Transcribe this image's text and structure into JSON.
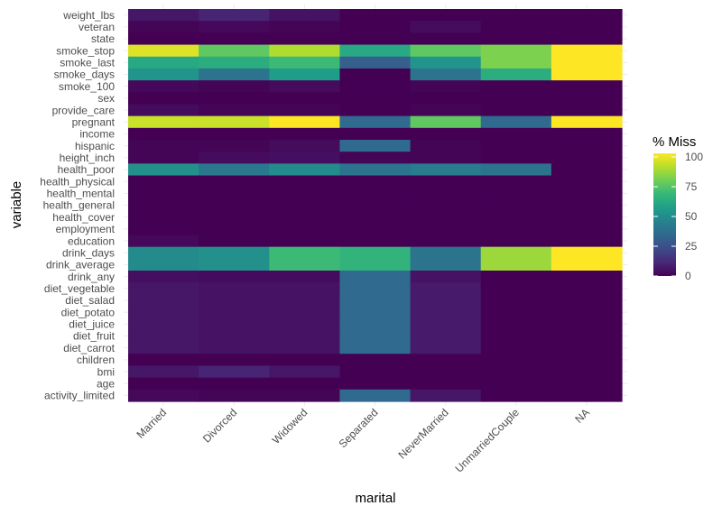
{
  "chart_data": {
    "type": "heatmap",
    "xlabel": "marital",
    "ylabel": "variable",
    "categories": [
      "Married",
      "Divorced",
      "Widowed",
      "Separated",
      "NeverMarried",
      "UnmarriedCouple",
      "NA"
    ],
    "variables": [
      "weight_lbs",
      "veteran",
      "state",
      "smoke_stop",
      "smoke_last",
      "smoke_days",
      "smoke_100",
      "sex",
      "provide_care",
      "pregnant",
      "income",
      "hispanic",
      "height_inch",
      "health_poor",
      "health_physical",
      "health_mental",
      "health_general",
      "health_cover",
      "employment",
      "education",
      "drink_days",
      "drink_average",
      "drink_any",
      "diet_vegetable",
      "diet_salad",
      "diet_potato",
      "diet_juice",
      "diet_fruit",
      "diet_carrot",
      "children",
      "bmi",
      "age",
      "activity_limited"
    ],
    "values": [
      [
        6,
        10,
        5,
        0,
        0,
        0,
        0
      ],
      [
        1,
        2,
        1,
        0,
        3,
        0,
        0
      ],
      [
        0,
        0,
        0,
        0,
        0,
        0,
        0
      ],
      [
        95,
        75,
        88,
        60,
        75,
        80,
        100
      ],
      [
        60,
        62,
        68,
        30,
        52,
        80,
        100
      ],
      [
        52,
        38,
        55,
        0,
        38,
        62,
        100
      ],
      [
        2,
        1,
        3,
        0,
        1,
        0,
        0
      ],
      [
        0,
        0,
        0,
        0,
        0,
        0,
        0
      ],
      [
        3,
        1,
        1,
        0,
        1,
        0,
        0
      ],
      [
        92,
        92,
        100,
        34,
        75,
        34,
        100
      ],
      [
        0,
        0,
        0,
        0,
        0,
        0,
        0
      ],
      [
        1,
        1,
        3,
        34,
        1,
        0,
        0
      ],
      [
        1,
        3,
        4,
        1,
        1,
        0,
        0
      ],
      [
        50,
        40,
        48,
        38,
        42,
        38,
        0
      ],
      [
        0,
        0,
        0,
        0,
        0,
        0,
        0
      ],
      [
        0,
        0,
        0,
        0,
        0,
        0,
        0
      ],
      [
        0,
        0,
        0,
        0,
        0,
        0,
        0
      ],
      [
        0,
        0,
        0,
        0,
        0,
        0,
        0
      ],
      [
        0,
        0,
        0,
        0,
        0,
        0,
        0
      ],
      [
        2,
        0,
        0,
        0,
        0,
        0,
        0
      ],
      [
        48,
        50,
        68,
        65,
        38,
        85,
        100
      ],
      [
        48,
        50,
        68,
        65,
        38,
        85,
        100
      ],
      [
        4,
        3,
        3,
        34,
        5,
        0,
        0
      ],
      [
        6,
        5,
        5,
        34,
        7,
        0,
        0
      ],
      [
        6,
        5,
        5,
        34,
        7,
        0,
        0
      ],
      [
        6,
        5,
        5,
        34,
        7,
        0,
        0
      ],
      [
        6,
        5,
        5,
        34,
        7,
        0,
        0
      ],
      [
        6,
        5,
        5,
        34,
        7,
        0,
        0
      ],
      [
        6,
        5,
        5,
        34,
        7,
        0,
        0
      ],
      [
        0,
        0,
        0,
        0,
        0,
        0,
        0
      ],
      [
        6,
        10,
        6,
        0,
        0,
        0,
        0
      ],
      [
        0,
        0,
        0,
        0,
        0,
        0,
        0
      ],
      [
        2,
        1,
        1,
        34,
        6,
        0,
        0
      ]
    ],
    "legend": {
      "title": "% Miss",
      "ticks": [
        100,
        75,
        50,
        25,
        0
      ],
      "range": [
        0,
        100
      ],
      "position": "right"
    },
    "colormap": "viridis",
    "grid": true
  },
  "colors": {
    "viridis": [
      "#440154",
      "#482878",
      "#3e4a89",
      "#31688e",
      "#26828e",
      "#1f9e89",
      "#35b779",
      "#6ece58",
      "#b5de2b",
      "#fde725"
    ],
    "grid": "#ebebeb",
    "tick_text": "#4d4d4d"
  }
}
